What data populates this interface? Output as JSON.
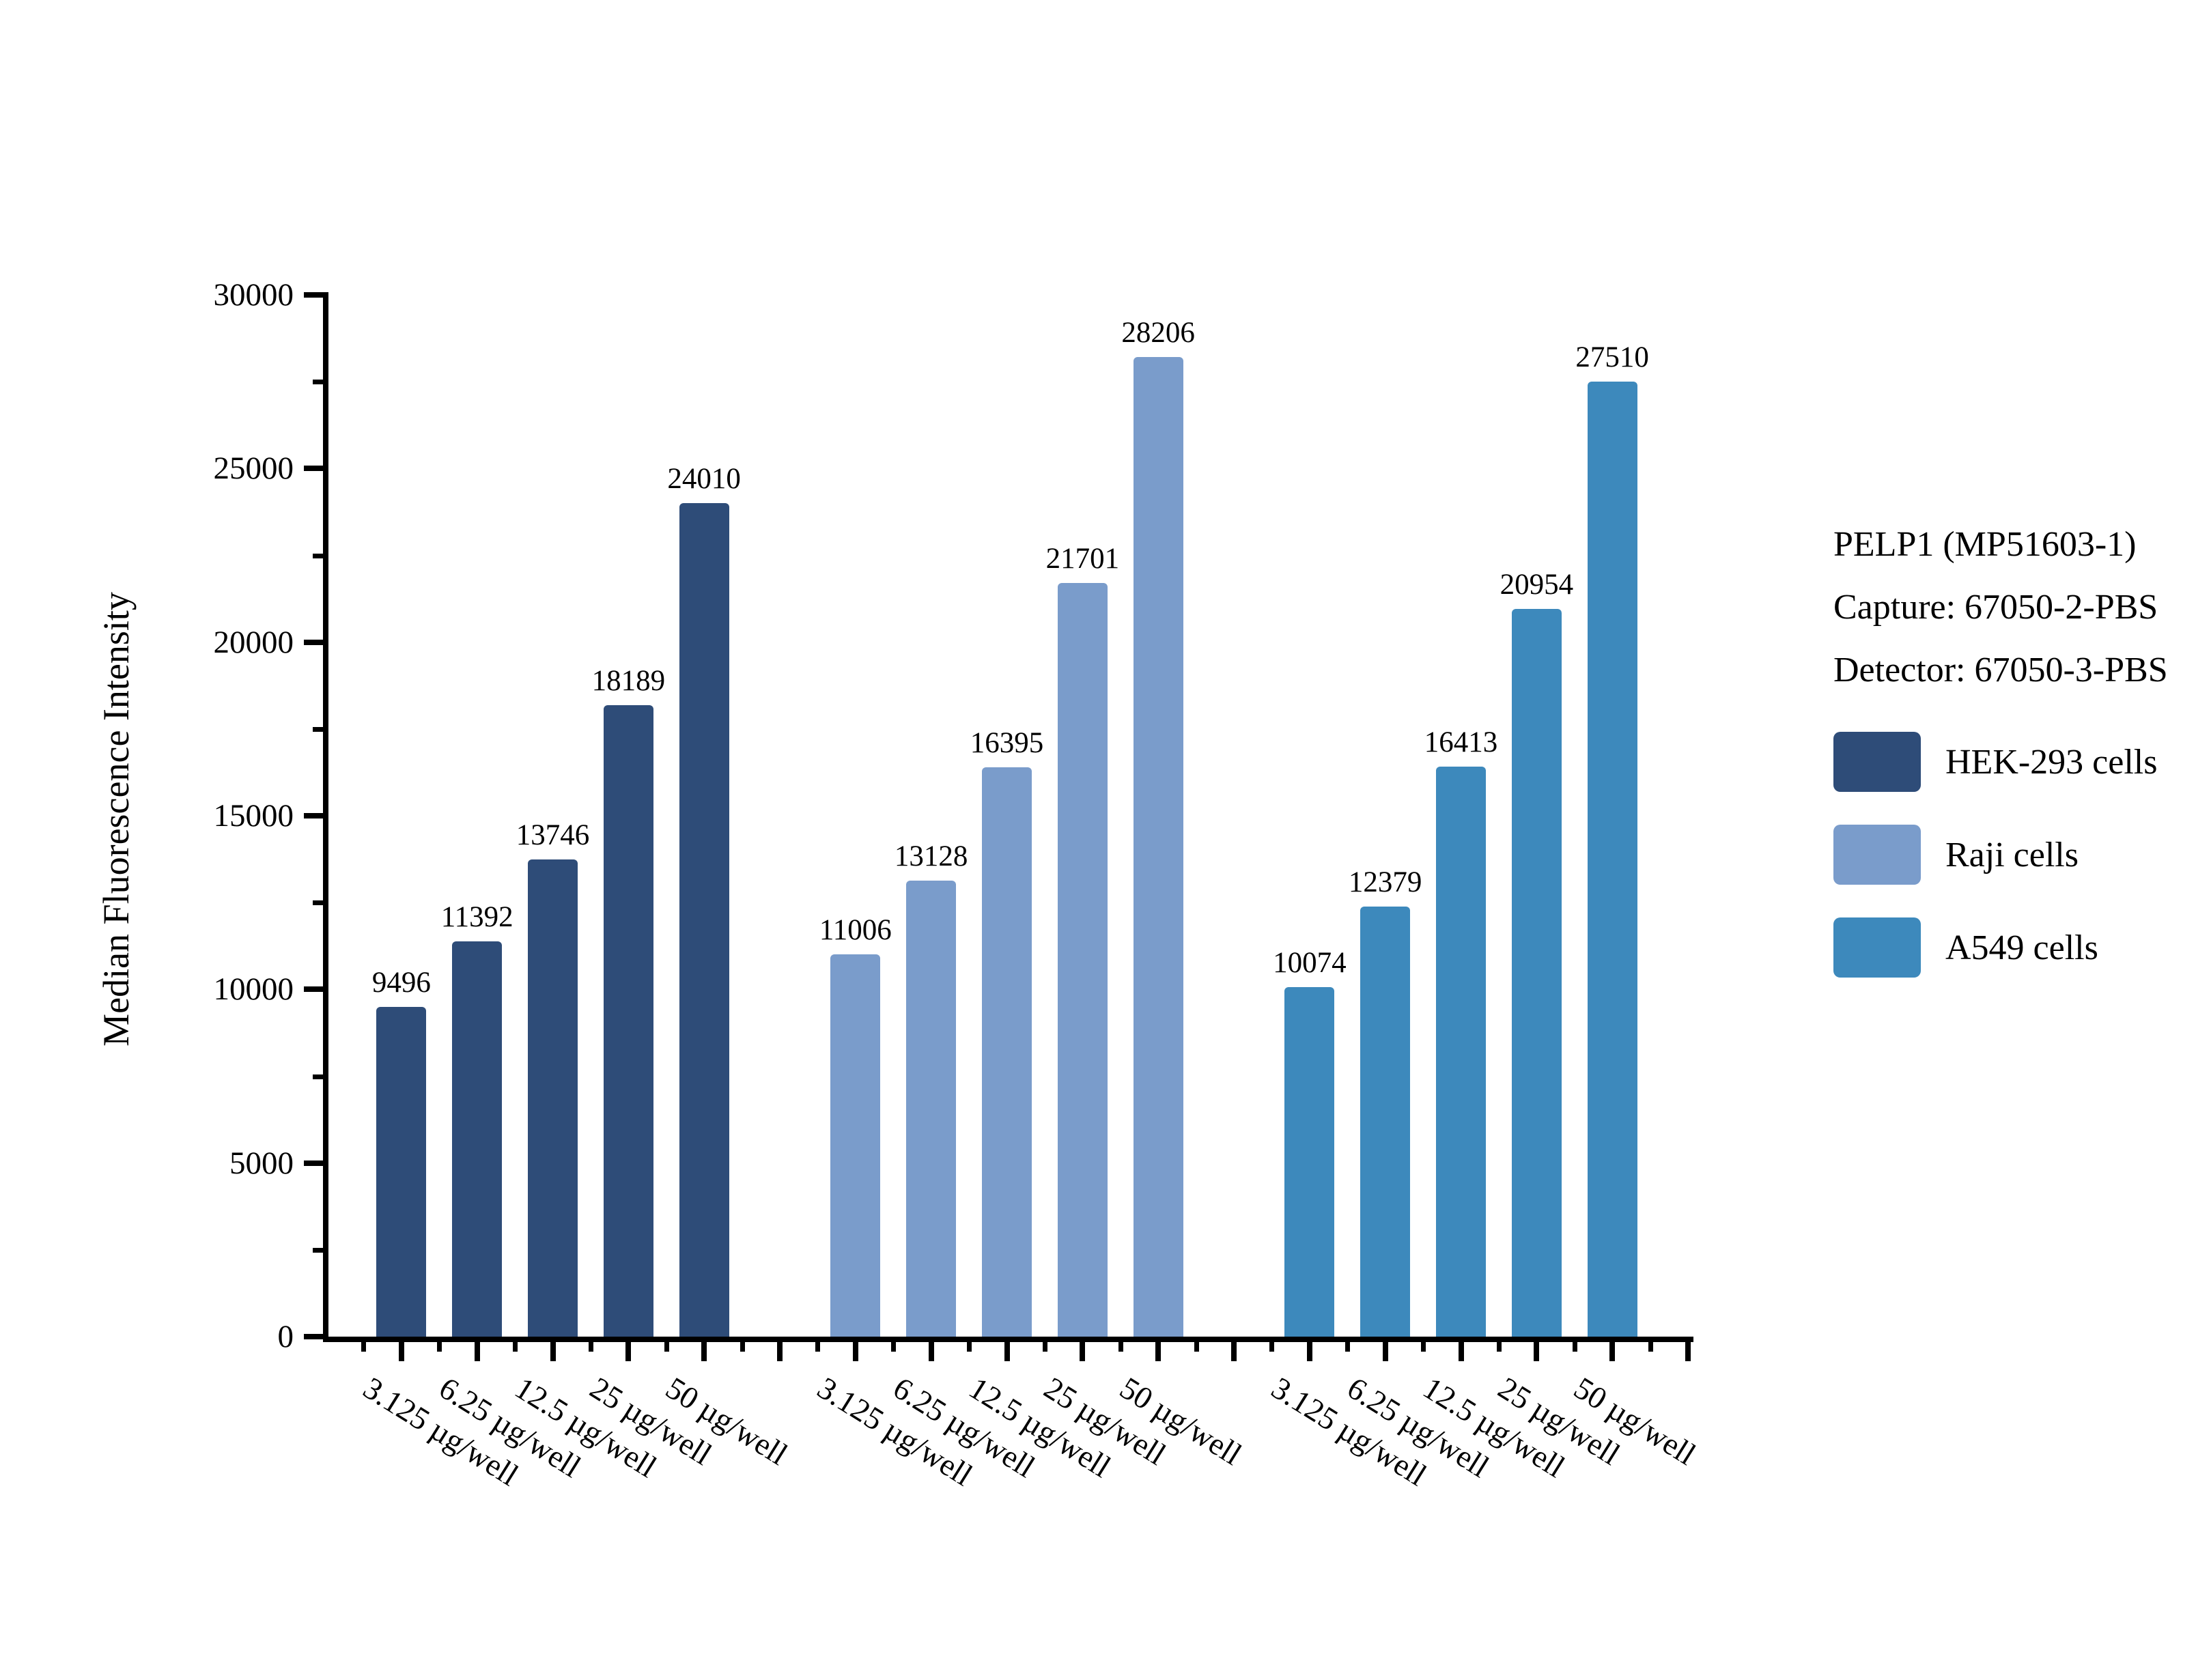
{
  "figure": {
    "background": "#ffffff",
    "info_block": [
      "PELP1 (MP51603-1)",
      "Capture: 67050-2-PBS",
      "Detector: 67050-3-PBS"
    ]
  },
  "chart_data": {
    "type": "bar",
    "title": "",
    "ylabel": "Median Fluorescence Intensity",
    "xlabel": "",
    "categories": [
      "3.125 µg/well",
      "6.25 µg/well",
      "12.5 µg/well",
      "25 µg/well",
      "50 µg/well"
    ],
    "series": [
      {
        "name": "HEK-293 cells",
        "color": "#2E4C78",
        "values": [
          9496,
          11392,
          13746,
          18189,
          24010
        ]
      },
      {
        "name": "Raji cells",
        "color": "#7A9CCB",
        "values": [
          11006,
          13128,
          16395,
          21701,
          28206
        ]
      },
      {
        "name": "A549 cells",
        "color": "#3D89BC",
        "values": [
          10074,
          12379,
          16413,
          20954,
          27510
        ]
      }
    ],
    "ylim": [
      0,
      30000
    ],
    "ytick_major": 5000,
    "ytick_minor": 2500,
    "bar_value_labels": true,
    "legend_position": "right",
    "grid": false
  }
}
